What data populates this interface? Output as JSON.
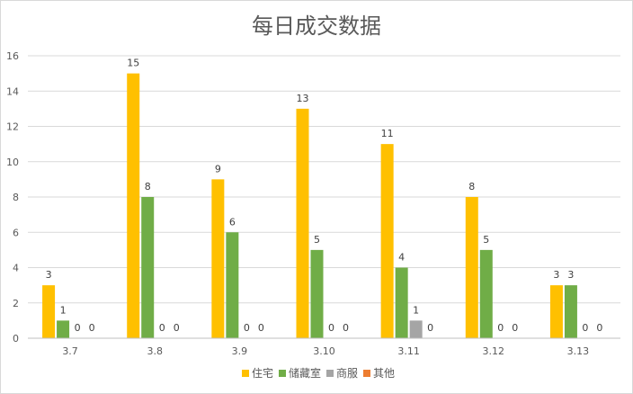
{
  "chart_data": {
    "type": "bar",
    "title": "每日成交数据",
    "xlabel": "",
    "ylabel": "",
    "categories": [
      "3.7",
      "3.8",
      "3.9",
      "3.10",
      "3.11",
      "3.12",
      "3.13"
    ],
    "ylim": [
      0,
      16
    ],
    "yticks": [
      0,
      2,
      4,
      6,
      8,
      10,
      12,
      14,
      16
    ],
    "grid": true,
    "legend_position": "bottom",
    "data_labels": true,
    "series": [
      {
        "name": "住宅",
        "color": "#FFC000",
        "values": [
          3,
          15,
          9,
          13,
          11,
          8,
          3
        ]
      },
      {
        "name": "储藏室",
        "color": "#70AD47",
        "values": [
          1,
          8,
          6,
          5,
          4,
          5,
          3
        ]
      },
      {
        "name": "商服",
        "color": "#A5A5A5",
        "values": [
          0,
          0,
          0,
          0,
          1,
          0,
          0
        ]
      },
      {
        "name": "其他",
        "color": "#ED7D31",
        "values": [
          0,
          0,
          0,
          0,
          0,
          0,
          0
        ]
      }
    ]
  }
}
